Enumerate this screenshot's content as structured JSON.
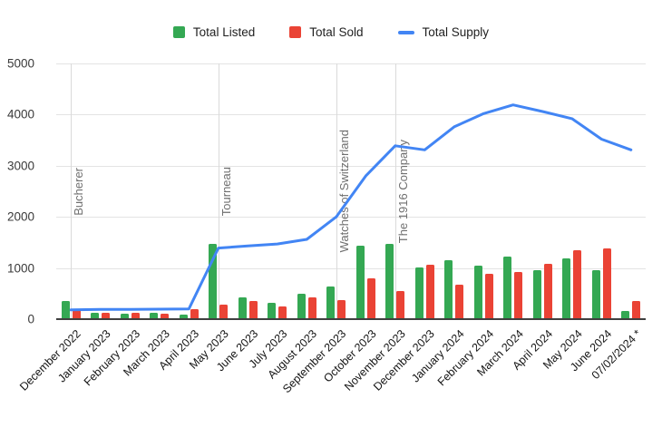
{
  "legend": {
    "items": [
      {
        "label": "Total Listed",
        "color": "#34a853",
        "shape": "square"
      },
      {
        "label": "Total Sold",
        "color": "#ea4335",
        "shape": "square"
      },
      {
        "label": "Total Supply",
        "color": "#4285f4",
        "shape": "line"
      }
    ]
  },
  "chart_data": {
    "type": "bar",
    "subtype": "combo-bar-line",
    "title": "",
    "xlabel": "",
    "ylabel": "",
    "ylim": [
      0,
      5000
    ],
    "ytick_step": 1000,
    "grid": true,
    "legend_position": "top",
    "categories": [
      "December 2022",
      "January 2023",
      "February 2023",
      "March 2023",
      "April 2023",
      "May 2023",
      "June 2023",
      "July 2023",
      "August 2023",
      "September 2023",
      "October 2023",
      "November 2023",
      "December 2023",
      "January 2024",
      "February 2024",
      "March 2024",
      "April 2024",
      "May 2024",
      "June 2024",
      "07/02/2024 *"
    ],
    "series": [
      {
        "name": "Total Listed",
        "render": "bar",
        "color": "#34a853",
        "values": [
          350,
          120,
          110,
          120,
          90,
          1470,
          430,
          320,
          500,
          630,
          1440,
          1470,
          1010,
          1160,
          1040,
          1215,
          965,
          1195,
          965,
          160
        ]
      },
      {
        "name": "Total Sold",
        "render": "bar",
        "color": "#ea4335",
        "values": [
          180,
          120,
          130,
          110,
          190,
          290,
          360,
          250,
          430,
          380,
          790,
          550,
          1060,
          680,
          880,
          930,
          1090,
          1340,
          1390,
          360
        ]
      },
      {
        "name": "Total Supply",
        "render": "line",
        "color": "#4285f4",
        "values": [
          180,
          190,
          190,
          195,
          200,
          1390,
          1430,
          1470,
          1560,
          2000,
          2800,
          3390,
          3310,
          3760,
          4020,
          4190,
          4060,
          3920,
          3520,
          3310
        ]
      }
    ],
    "annotations": [
      {
        "label": "Bucherer",
        "category_index": 0
      },
      {
        "label": "Tourneau",
        "category_index": 5
      },
      {
        "label": "Watches of Switzerland",
        "category_index": 9
      },
      {
        "label": "The 1916 Company",
        "category_index": 11
      }
    ]
  }
}
